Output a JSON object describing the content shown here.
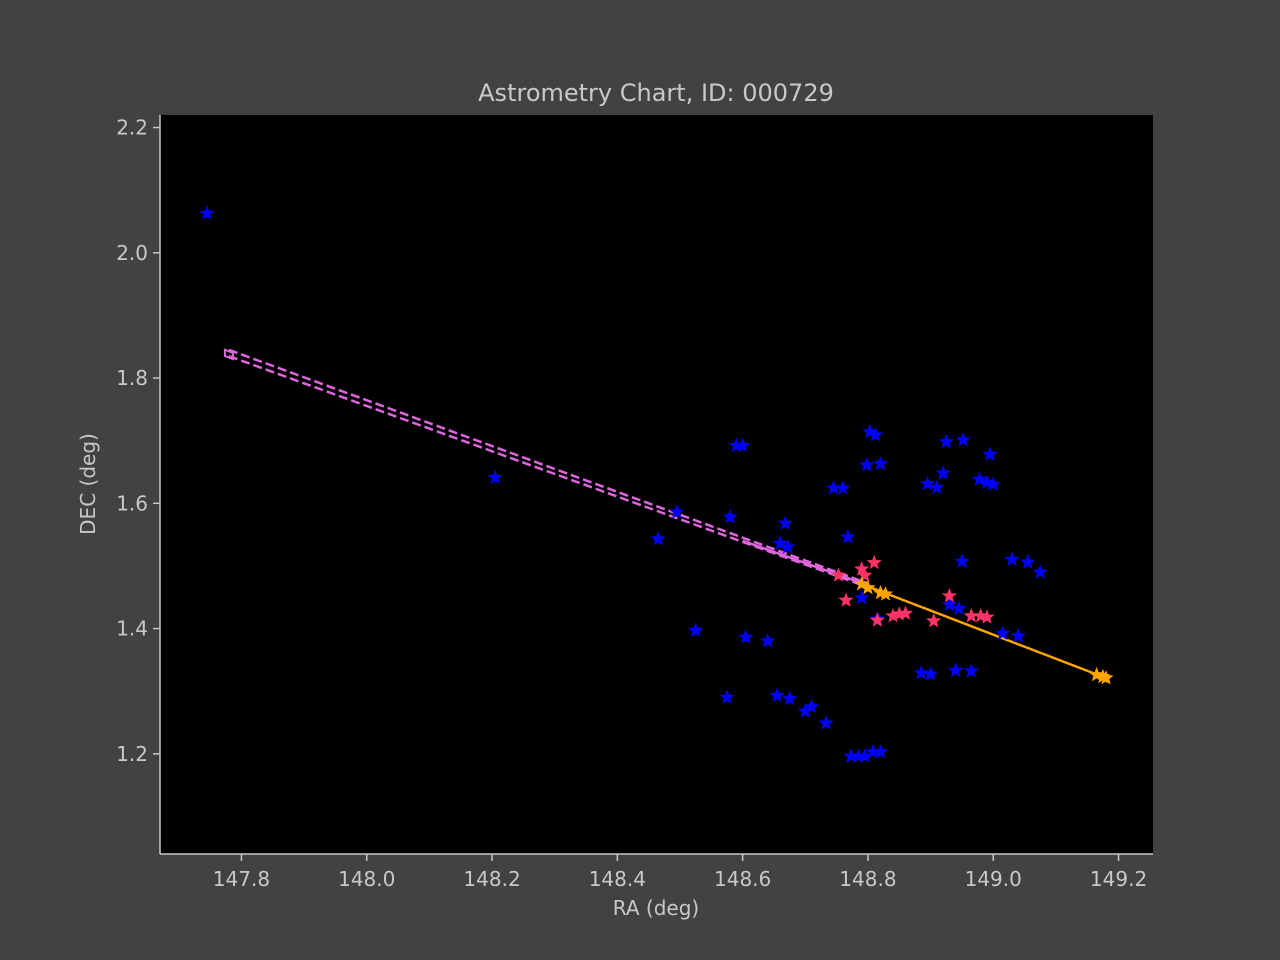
{
  "chart_data": {
    "type": "scatter",
    "title": "Astrometry Chart, ID: 000729",
    "xlabel": "RA (deg)",
    "ylabel": "DEC (deg)",
    "xlim": [
      147.67,
      149.255
    ],
    "ylim": [
      1.04,
      2.22
    ],
    "xticks": [
      "147.8",
      "148.0",
      "148.2",
      "148.4",
      "148.6",
      "148.8",
      "149.0",
      "149.2"
    ],
    "yticks": [
      "1.2",
      "1.4",
      "1.6",
      "1.8",
      "2.0",
      "2.2"
    ],
    "grid": false,
    "legend": "none",
    "colors": {
      "background": "#424242",
      "plot_area": "#000000",
      "axes_text": "#c8c8c8",
      "catalog_stars": "#0000ff",
      "track_stars": "#ff3366",
      "track_line": "#ffa500",
      "projection": "#dd66dd"
    },
    "series": [
      {
        "marker": "star",
        "color": "#0000ff",
        "points": [
          [
            147.745,
            2.063
          ],
          [
            148.205,
            1.641
          ],
          [
            148.465,
            1.543
          ],
          [
            148.495,
            1.586
          ],
          [
            148.525,
            1.397
          ],
          [
            148.575,
            1.29
          ],
          [
            148.58,
            1.578
          ],
          [
            148.59,
            1.692
          ],
          [
            148.6,
            1.692
          ],
          [
            148.605,
            1.386
          ],
          [
            148.64,
            1.38
          ],
          [
            148.655,
            1.293
          ],
          [
            148.66,
            1.536
          ],
          [
            148.668,
            1.568
          ],
          [
            148.672,
            1.53
          ],
          [
            148.675,
            1.288
          ],
          [
            148.7,
            1.268
          ],
          [
            148.71,
            1.275
          ],
          [
            148.733,
            1.249
          ],
          [
            148.745,
            1.624
          ],
          [
            148.76,
            1.624
          ],
          [
            148.768,
            1.546
          ],
          [
            148.773,
            1.196
          ],
          [
            148.785,
            1.196
          ],
          [
            148.79,
            1.449
          ],
          [
            148.795,
            1.196
          ],
          [
            148.798,
            1.661
          ],
          [
            148.803,
            1.714
          ],
          [
            148.808,
            1.203
          ],
          [
            148.812,
            1.709
          ],
          [
            148.815,
            1.415
          ],
          [
            148.82,
            1.663
          ],
          [
            148.82,
            1.203
          ],
          [
            148.885,
            1.329
          ],
          [
            148.895,
            1.631
          ],
          [
            148.9,
            1.327
          ],
          [
            148.91,
            1.625
          ],
          [
            148.92,
            1.648
          ],
          [
            148.925,
            1.698
          ],
          [
            148.93,
            1.438
          ],
          [
            148.94,
            1.333
          ],
          [
            148.945,
            1.432
          ],
          [
            148.95,
            1.507
          ],
          [
            148.952,
            1.701
          ],
          [
            148.965,
            1.332
          ],
          [
            148.978,
            1.638
          ],
          [
            148.99,
            1.633
          ],
          [
            148.995,
            1.678
          ],
          [
            149.0,
            1.63
          ],
          [
            149.015,
            1.392
          ],
          [
            149.03,
            1.51
          ],
          [
            149.04,
            1.388
          ],
          [
            149.055,
            1.506
          ],
          [
            149.075,
            1.49
          ]
        ]
      },
      {
        "marker": "star",
        "color": "#ff3366",
        "points": [
          [
            148.753,
            1.485
          ],
          [
            148.765,
            1.445
          ],
          [
            148.79,
            1.495
          ],
          [
            148.795,
            1.485
          ],
          [
            148.81,
            1.505
          ],
          [
            148.815,
            1.413
          ],
          [
            148.84,
            1.42
          ],
          [
            148.85,
            1.423
          ],
          [
            148.86,
            1.424
          ],
          [
            148.905,
            1.412
          ],
          [
            148.93,
            1.452
          ],
          [
            148.965,
            1.42
          ],
          [
            148.98,
            1.42
          ],
          [
            148.99,
            1.418
          ]
        ]
      },
      {
        "marker": "star",
        "color": "#ffa500",
        "points": [
          [
            148.79,
            1.471
          ],
          [
            148.8,
            1.465
          ],
          [
            148.82,
            1.457
          ],
          [
            148.828,
            1.455
          ],
          [
            149.165,
            1.326
          ],
          [
            149.175,
            1.323
          ],
          [
            149.18,
            1.321
          ]
        ]
      }
    ],
    "track_line": {
      "color": "#ffa500",
      "style": "solid",
      "points": [
        [
          148.79,
          1.471
        ],
        [
          149.18,
          1.321
        ]
      ]
    },
    "projection_lines": [
      {
        "color": "#dd66dd",
        "style": "dashed",
        "points": [
          [
            147.78,
            1.845
          ],
          [
            148.8,
            1.472
          ]
        ]
      },
      {
        "color": "#dd66dd",
        "style": "dashed",
        "points": [
          [
            147.78,
            1.835
          ],
          [
            148.8,
            1.466
          ]
        ]
      },
      {
        "color": "#dd66dd",
        "style": "solid",
        "points": [
          [
            148.6,
            1.54
          ],
          [
            148.8,
            1.469
          ]
        ]
      }
    ]
  }
}
